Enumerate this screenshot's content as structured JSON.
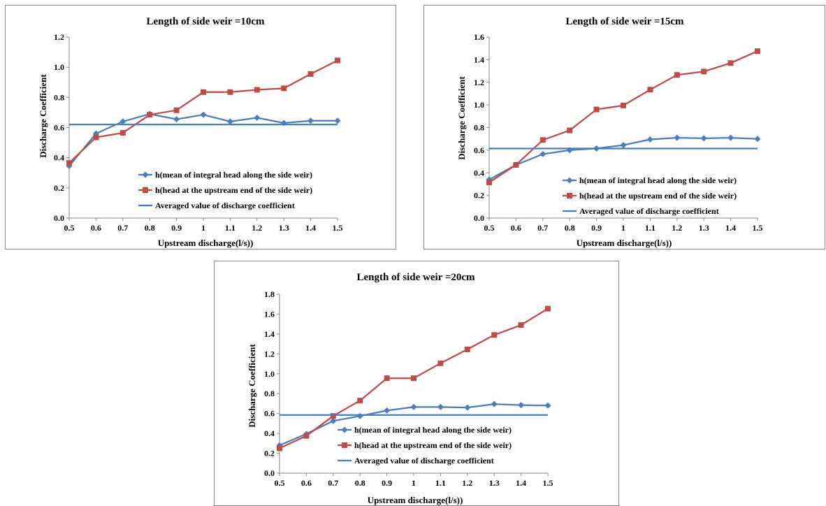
{
  "chart_data": [
    {
      "type": "line",
      "title": "Length of side weir =10cm",
      "xlabel": "Upstream discharge(l/s))",
      "ylabel": "Discharge Coefficient",
      "x": [
        0.5,
        0.6,
        0.7,
        0.8,
        0.9,
        1.0,
        1.1,
        1.2,
        1.3,
        1.4,
        1.5
      ],
      "x_tick_labels": [
        "0.5",
        "0.6",
        "0.7",
        "0.8",
        "0.9",
        "1",
        "1.1",
        "1.2",
        "1.3",
        "1.4",
        "1.5"
      ],
      "ylim": [
        0,
        1.2
      ],
      "y_ticks": [
        0,
        0.2,
        0.4,
        0.6,
        0.8,
        1.0,
        1.2
      ],
      "y_tick_labels": [
        "0.0",
        "0.2",
        "0.4",
        "0.6",
        "0.8",
        "1.0",
        "1.2"
      ],
      "grid": false,
      "legend_position": "bottom-right",
      "series": [
        {
          "name": "h(mean of integral head along the side weir)",
          "color": "#4A7EBB",
          "marker": "diamond",
          "values": [
            0.345,
            0.56,
            0.64,
            0.69,
            0.655,
            0.685,
            0.64,
            0.665,
            0.63,
            0.645,
            0.645
          ]
        },
        {
          "name": "h(head at the upstream end of the side weir)",
          "color": "#BE4B48",
          "marker": "square",
          "values": [
            0.365,
            0.535,
            0.565,
            0.685,
            0.715,
            0.835,
            0.835,
            0.85,
            0.86,
            0.955,
            1.045
          ]
        },
        {
          "name": "Averaged value of discharge coefficient",
          "color": "#4A7EBB",
          "marker": "none",
          "values": [
            0.62,
            0.62,
            0.62,
            0.62,
            0.62,
            0.62,
            0.62,
            0.62,
            0.62,
            0.62,
            0.62
          ]
        }
      ]
    },
    {
      "type": "line",
      "title": "Length of side weir =15cm",
      "xlabel": "Upstream discharge(l/s))",
      "ylabel": "Discharge Coefficient",
      "x": [
        0.5,
        0.6,
        0.7,
        0.8,
        0.9,
        1.0,
        1.1,
        1.2,
        1.3,
        1.4,
        1.5
      ],
      "x_tick_labels": [
        "0.5",
        "0.6",
        "0.7",
        "0.8",
        "0.9",
        "1",
        "1.1",
        "1.2",
        "1.3",
        "1.4",
        "1.5"
      ],
      "ylim": [
        0,
        1.6
      ],
      "y_ticks": [
        0,
        0.2,
        0.4,
        0.6,
        0.8,
        1.0,
        1.2,
        1.4,
        1.6
      ],
      "y_tick_labels": [
        "0.0",
        "0.2",
        "0.4",
        "0.6",
        "0.8",
        "1.0",
        "1.2",
        "1.4",
        "1.6"
      ],
      "grid": false,
      "legend_position": "bottom-right",
      "series": [
        {
          "name": "h(mean of integral head along the side weir)",
          "color": "#4A7EBB",
          "marker": "diamond",
          "values": [
            0.34,
            0.47,
            0.565,
            0.6,
            0.615,
            0.645,
            0.695,
            0.71,
            0.705,
            0.71,
            0.7
          ]
        },
        {
          "name": "h(head at the upstream end of the side weir)",
          "color": "#BE4B48",
          "marker": "square",
          "values": [
            0.315,
            0.47,
            0.69,
            0.775,
            0.96,
            0.995,
            1.135,
            1.265,
            1.295,
            1.37,
            1.475
          ]
        },
        {
          "name": "Averaged value of discharge coefficient",
          "color": "#4A7EBB",
          "marker": "none",
          "values": [
            0.615,
            0.615,
            0.615,
            0.615,
            0.615,
            0.615,
            0.615,
            0.615,
            0.615,
            0.615,
            0.615
          ]
        }
      ]
    },
    {
      "type": "line",
      "title": "Length of side weir =20cm",
      "xlabel": "Upstream discharge(l/s))",
      "ylabel": "Discharge Coefficient",
      "x": [
        0.5,
        0.6,
        0.7,
        0.8,
        0.9,
        1.0,
        1.1,
        1.2,
        1.3,
        1.4,
        1.5
      ],
      "x_tick_labels": [
        "0.5",
        "0.6",
        "0.7",
        "0.8",
        "0.9",
        "1",
        "1.1",
        "1.2",
        "1.3",
        "1.4",
        "1.5"
      ],
      "ylim": [
        0,
        1.8
      ],
      "y_ticks": [
        0,
        0.2,
        0.4,
        0.6,
        0.8,
        1.0,
        1.2,
        1.4,
        1.6,
        1.8
      ],
      "y_tick_labels": [
        "0.0",
        "0.2",
        "0.4",
        "0.6",
        "0.8",
        "1.0",
        "1.2",
        "1.4",
        "1.6",
        "1.8"
      ],
      "grid": false,
      "legend_position": "bottom-right",
      "series": [
        {
          "name": "h(mean of integral head along the side weir)",
          "color": "#4A7EBB",
          "marker": "diamond",
          "values": [
            0.28,
            0.395,
            0.525,
            0.575,
            0.63,
            0.665,
            0.665,
            0.66,
            0.695,
            0.685,
            0.68
          ]
        },
        {
          "name": "h(head at the upstream end of the side weir)",
          "color": "#BE4B48",
          "marker": "square",
          "values": [
            0.25,
            0.375,
            0.575,
            0.73,
            0.955,
            0.955,
            1.105,
            1.245,
            1.39,
            1.49,
            1.655
          ]
        },
        {
          "name": "Averaged value of discharge coefficient",
          "color": "#4A7EBB",
          "marker": "none",
          "values": [
            0.585,
            0.585,
            0.585,
            0.585,
            0.585,
            0.585,
            0.585,
            0.585,
            0.585,
            0.585,
            0.585
          ]
        }
      ]
    }
  ]
}
